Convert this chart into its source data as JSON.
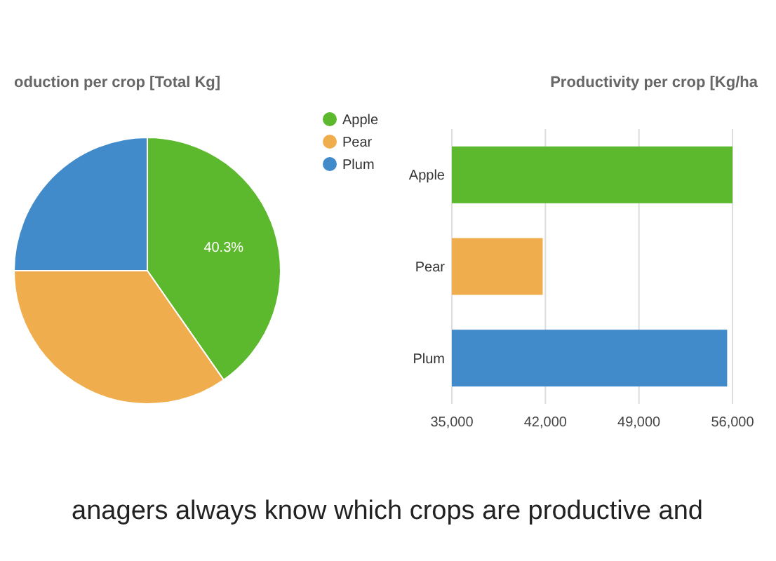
{
  "chart_data": [
    {
      "type": "pie",
      "title": "oduction per crop [Total Kg]",
      "categories": [
        "Apple",
        "Pear",
        "Plum"
      ],
      "values": [
        40.3,
        34.7,
        25
      ],
      "colors": [
        "#5cb82c",
        "#f0ad4e",
        "#428bca"
      ],
      "value_labels": [
        "40.3%",
        null,
        null
      ],
      "legend": "top right"
    },
    {
      "type": "bar",
      "orientation": "horizontal",
      "title": "Productivity per crop [Kg/ha",
      "categories": [
        "Apple",
        "Pear",
        "Plum"
      ],
      "values": [
        56000,
        41800,
        55600
      ],
      "colors": [
        "#5cb82c",
        "#f0ad4e",
        "#428bca"
      ],
      "xlim": [
        35000,
        56000
      ],
      "xticks": [
        {
          "value": 35000,
          "label": "35,000"
        },
        {
          "value": 42000,
          "label": "42,000"
        },
        {
          "value": 49000,
          "label": "49,000"
        },
        {
          "value": 56000,
          "label": "56,000"
        }
      ],
      "grid": "x",
      "annotations": [
        "anagers always know which crops are productive and"
      ]
    }
  ]
}
